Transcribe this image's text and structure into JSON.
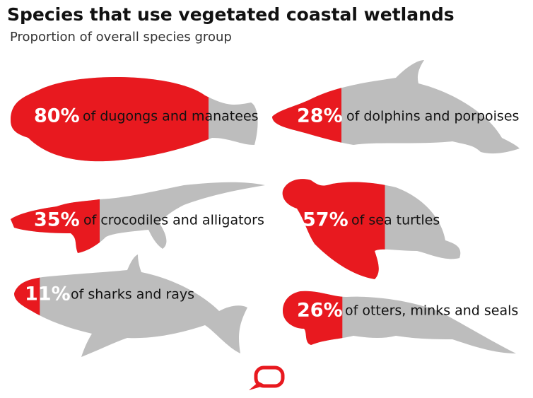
{
  "chart_data": {
    "type": "pictogram",
    "title": "Species that use vegetated coastal wetlands",
    "subtitle": "Proportion of overall species group",
    "categories": [
      "of dugongs and manatees",
      "of dolphins and porpoises",
      "of crocodiles and alligators",
      "of sea turtles",
      "of sharks and rays",
      "of otters, minks and seals"
    ],
    "values": [
      80,
      28,
      35,
      57,
      11,
      26
    ],
    "value_labels": [
      "80%",
      "28%",
      "35%",
      "57%",
      "11%",
      "26%"
    ],
    "color": "#e8191f"
  }
}
